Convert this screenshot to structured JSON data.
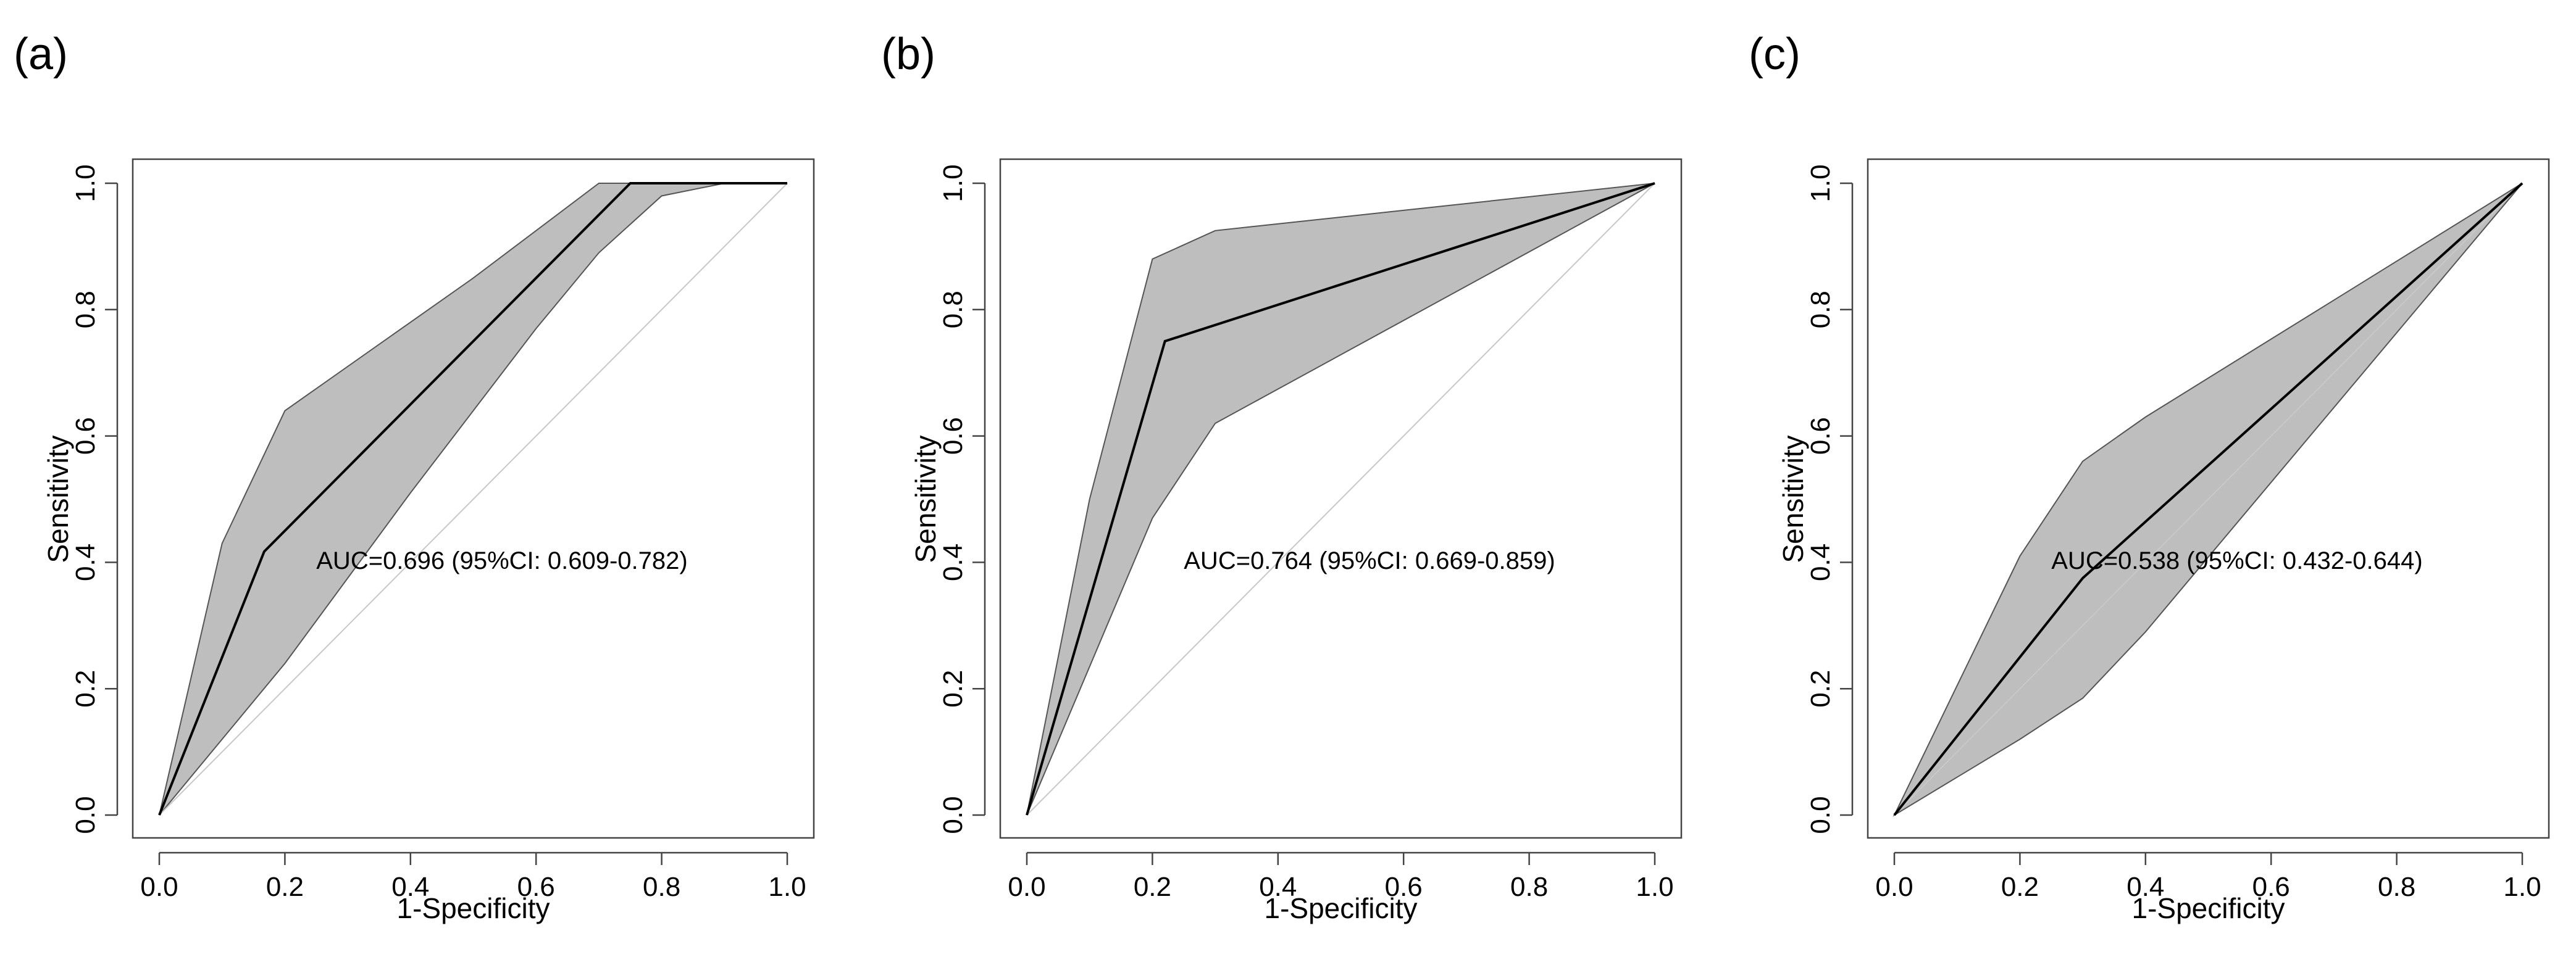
{
  "chart_data": [
    {
      "panel": "(a)",
      "type": "line",
      "xlabel": "1-Specificity",
      "ylabel": "Sensitivity",
      "xlim": [
        0,
        1
      ],
      "ylim": [
        0,
        1
      ],
      "xticks": [
        "0.0",
        "0.2",
        "0.4",
        "0.6",
        "0.8",
        "1.0"
      ],
      "yticks": [
        "0.0",
        "0.2",
        "0.4",
        "0.6",
        "0.8",
        "1.0"
      ],
      "annotation": "AUC=0.696 (95%CI: 0.609-0.782)",
      "annotation_at": [
        0.25,
        0.4
      ],
      "series": [
        {
          "name": "ROC",
          "x": [
            0,
            0.167,
            0.75,
            1
          ],
          "y": [
            0,
            0.417,
            1,
            1
          ]
        },
        {
          "name": "CI upper",
          "x": [
            0,
            0.1,
            0.2,
            0.5,
            0.7,
            1
          ],
          "y": [
            0,
            0.43,
            0.64,
            0.85,
            1,
            1
          ]
        },
        {
          "name": "CI lower",
          "x": [
            0,
            0.2,
            0.4,
            0.6,
            0.7,
            0.8,
            0.9,
            1
          ],
          "y": [
            0,
            0.24,
            0.51,
            0.77,
            0.89,
            0.98,
            1,
            1
          ]
        },
        {
          "name": "Reference",
          "x": [
            0,
            1
          ],
          "y": [
            0,
            1
          ]
        }
      ]
    },
    {
      "panel": "(b)",
      "type": "line",
      "xlabel": "1-Specificity",
      "ylabel": "Sensitivity",
      "xlim": [
        0,
        1
      ],
      "ylim": [
        0,
        1
      ],
      "xticks": [
        "0.0",
        "0.2",
        "0.4",
        "0.6",
        "0.8",
        "1.0"
      ],
      "yticks": [
        "0.0",
        "0.2",
        "0.4",
        "0.6",
        "0.8",
        "1.0"
      ],
      "annotation": "AUC=0.764 (95%CI: 0.669-0.859)",
      "annotation_at": [
        0.25,
        0.4
      ],
      "series": [
        {
          "name": "ROC",
          "x": [
            0,
            0.22,
            1
          ],
          "y": [
            0,
            0.75,
            1
          ]
        },
        {
          "name": "CI upper",
          "x": [
            0,
            0.1,
            0.2,
            0.3,
            1
          ],
          "y": [
            0,
            0.5,
            0.88,
            0.925,
            1
          ]
        },
        {
          "name": "CI lower",
          "x": [
            0,
            0.2,
            0.3,
            1
          ],
          "y": [
            0,
            0.47,
            0.62,
            1
          ]
        },
        {
          "name": "Reference",
          "x": [
            0,
            1
          ],
          "y": [
            0,
            1
          ]
        }
      ]
    },
    {
      "panel": "(c)",
      "type": "line",
      "xlabel": "1-Specificity",
      "ylabel": "Sensitivity",
      "xlim": [
        0,
        1
      ],
      "ylim": [
        0,
        1
      ],
      "xticks": [
        "0.0",
        "0.2",
        "0.4",
        "0.6",
        "0.8",
        "1.0"
      ],
      "yticks": [
        "0.0",
        "0.2",
        "0.4",
        "0.6",
        "0.8",
        "1.0"
      ],
      "annotation": "AUC=0.538 (95%CI: 0.432-0.644)",
      "annotation_at": [
        0.25,
        0.4
      ],
      "series": [
        {
          "name": "ROC",
          "x": [
            0,
            0.3,
            1
          ],
          "y": [
            0,
            0.375,
            1
          ]
        },
        {
          "name": "CI upper",
          "x": [
            0,
            0.2,
            0.3,
            0.4,
            1
          ],
          "y": [
            0,
            0.41,
            0.56,
            0.63,
            1
          ]
        },
        {
          "name": "CI lower",
          "x": [
            0,
            0.2,
            0.3,
            0.4,
            1
          ],
          "y": [
            0,
            0.12,
            0.185,
            0.29,
            1
          ]
        },
        {
          "name": "Reference",
          "x": [
            0,
            1
          ],
          "y": [
            0,
            1
          ]
        }
      ]
    }
  ]
}
